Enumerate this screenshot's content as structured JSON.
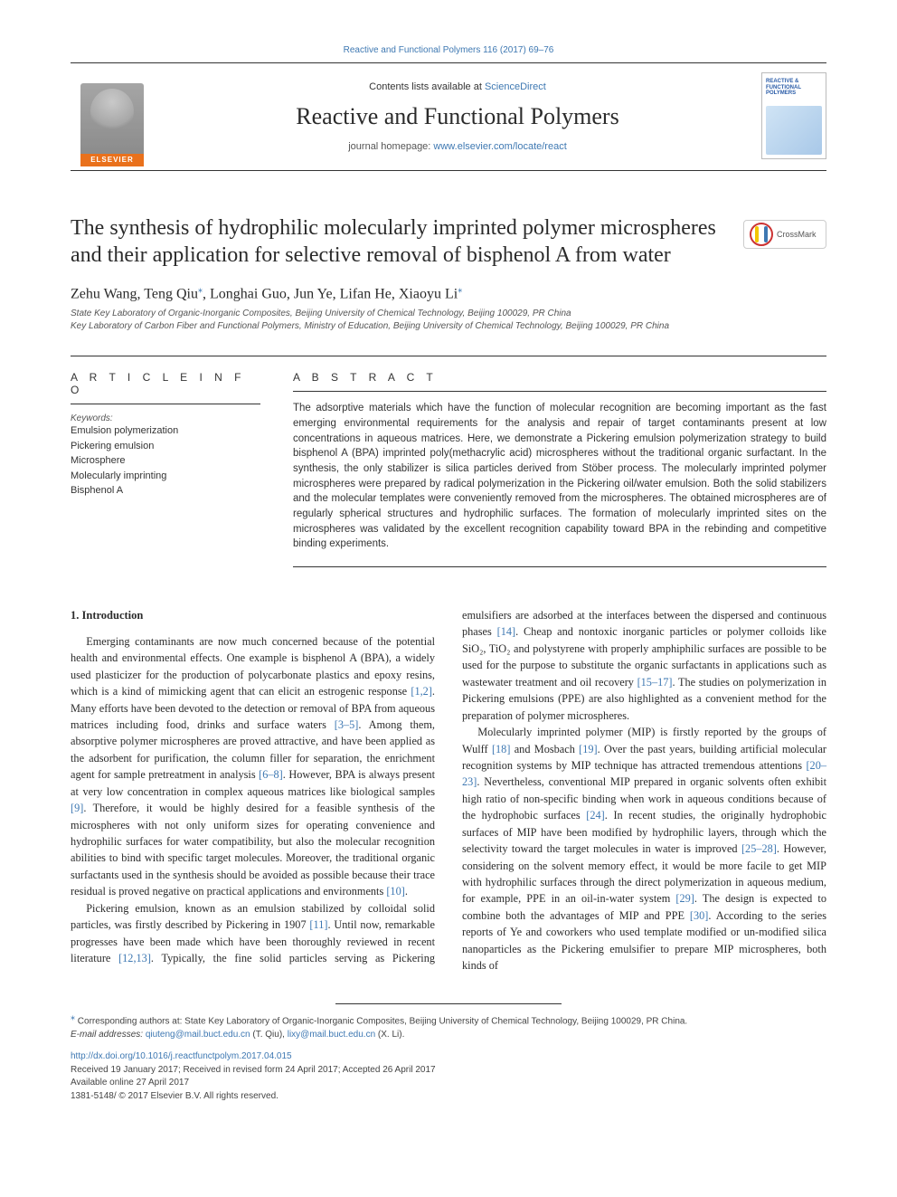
{
  "colors": {
    "link": "#3e78b2",
    "text": "#3a3a3a",
    "heading": "#2b2b2b",
    "elsevier_orange": "#e9711c",
    "border": "#333333"
  },
  "top_link": "Reactive and Functional Polymers 116 (2017) 69–76",
  "masthead": {
    "elsevier_label": "ELSEVIER",
    "contents_prefix": "Contents lists available at ",
    "contents_linktext": "ScienceDirect",
    "journal_name": "Reactive and Functional Polymers",
    "homepage_prefix": "journal homepage: ",
    "homepage_url": "www.elsevier.com/locate/react",
    "cover_title": "REACTIVE & FUNCTIONAL POLYMERS"
  },
  "crossmark_label": "CrossMark",
  "title": "The synthesis of hydrophilic molecularly imprinted polymer microspheres and their application for selective removal of bisphenol A from water",
  "authors_html": "Zehu Wang, Teng Qiu*, Longhai Guo, Jun Ye, Lifan He, Xiaoyu Li*",
  "authors": [
    {
      "name": "Zehu Wang",
      "corresponding": false
    },
    {
      "name": "Teng Qiu",
      "corresponding": true
    },
    {
      "name": "Longhai Guo",
      "corresponding": false
    },
    {
      "name": "Jun Ye",
      "corresponding": false
    },
    {
      "name": "Lifan He",
      "corresponding": false
    },
    {
      "name": "Xiaoyu Li",
      "corresponding": true
    }
  ],
  "affiliations": [
    "State Key Laboratory of Organic-Inorganic Composites, Beijing University of Chemical Technology, Beijing 100029, PR China",
    "Key Laboratory of Carbon Fiber and Functional Polymers, Ministry of Education, Beijing University of Chemical Technology, Beijing 100029, PR China"
  ],
  "article_info": {
    "heading": "A R T I C L E  I N F O",
    "keywords_label": "Keywords:",
    "keywords": [
      "Emulsion polymerization",
      "Pickering emulsion",
      "Microsphere",
      "Molecularly imprinting",
      "Bisphenol A"
    ]
  },
  "abstract": {
    "heading": "A B S T R A C T",
    "text": "The adsorptive materials which have the function of molecular recognition are becoming important as the fast emerging environmental requirements for the analysis and repair of target contaminants present at low concentrations in aqueous matrices. Here, we demonstrate a Pickering emulsion polymerization strategy to build bisphenol A (BPA) imprinted poly(methacrylic acid) microspheres without the traditional organic surfactant. In the synthesis, the only stabilizer is silica particles derived from Stöber process. The molecularly imprinted polymer microspheres were prepared by radical polymerization in the Pickering oil/water emulsion. Both the solid stabilizers and the molecular templates were conveniently removed from the microspheres. The obtained microspheres are of regularly spherical structures and hydrophilic surfaces. The formation of molecularly imprinted sites on the microspheres was validated by the excellent recognition capability toward BPA in the rebinding and competitive binding experiments."
  },
  "body": {
    "heading_1": "1. Introduction",
    "para_1": "Emerging contaminants are now much concerned because of the potential health and environmental effects. One example is bisphenol A (BPA), a widely used plasticizer for the production of polycarbonate plastics and epoxy resins, which is a kind of mimicking agent that can elicit an estrogenic response [1,2]. Many efforts have been devoted to the detection or removal of BPA from aqueous matrices including food, drinks and surface waters [3–5]. Among them, absorptive polymer microspheres are proved attractive, and have been applied as the adsorbent for purification, the column filler for separation, the enrichment agent for sample pretreatment in analysis [6–8]. However, BPA is always present at very low concentration in complex aqueous matrices like biological samples [9]. Therefore, it would be highly desired for a feasible synthesis of the microspheres with not only uniform sizes for operating convenience and hydrophilic surfaces for water compatibility, but also the molecular recognition abilities to bind with specific target molecules. Moreover, the traditional organic surfactants used in the synthesis should be avoided as possible because their trace residual is proved negative on practical applications and environments [10].",
    "para_2": "Pickering emulsion, known as an emulsion stabilized by colloidal solid particles, was firstly described by Pickering in 1907 [11]. Until now, remarkable progresses have been made which have been thoroughly reviewed in recent literature [12,13]. Typically, the fine solid particles serving as Pickering emulsifiers are adsorbed at the interfaces between the dispersed and continuous phases [14]. Cheap and nontoxic inorganic particles or polymer colloids like SiO₂, TiO₂ and polystyrene with properly amphiphilic surfaces are possible to be used for the purpose to substitute the organic surfactants in applications such as wastewater treatment and oil recovery [15–17]. The studies on polymerization in Pickering emulsions (PPE) are also highlighted as a convenient method for the preparation of polymer microspheres.",
    "para_3": "Molecularly imprinted polymer (MIP) is firstly reported by the groups of Wulff [18] and Mosbach [19]. Over the past years, building artificial molecular recognition systems by MIP technique has attracted tremendous attentions [20–23]. Nevertheless, conventional MIP prepared in organic solvents often exhibit high ratio of non-specific binding when work in aqueous conditions because of the hydrophobic surfaces [24]. In recent studies, the originally hydrophobic surfaces of MIP have been modified by hydrophilic layers, through which the selectivity toward the target molecules in water is improved [25–28]. However, considering on the solvent memory effect, it would be more facile to get MIP with hydrophilic surfaces through the direct polymerization in aqueous medium, for example, PPE in an oil-in-water system [29]. The design is expected to combine both the advantages of MIP and PPE [30]. According to the series reports of Ye and coworkers who used template modified or un-modified silica nanoparticles as the Pickering emulsifier to prepare MIP microspheres, both kinds of",
    "refs_inline": [
      "[1,2]",
      "[3–5]",
      "[6–8]",
      "[9]",
      "[10]",
      "[11]",
      "[12,13]",
      "[14]",
      "[15–17]",
      "[18]",
      "[19]",
      "[20–23]",
      "[24]",
      "[25–28]",
      "[29]",
      "[30]"
    ]
  },
  "footer": {
    "corresponding_note": "Corresponding authors at: State Key Laboratory of Organic-Inorganic Composites, Beijing University of Chemical Technology, Beijing 100029, PR China.",
    "email_label": "E-mail addresses:",
    "emails": [
      {
        "addr": "qiuteng@mail.buct.edu.cn",
        "name": "(T. Qiu)"
      },
      {
        "addr": "lixy@mail.buct.edu.cn",
        "name": "(X. Li)"
      }
    ],
    "doi": "http://dx.doi.org/10.1016/j.reactfunctpolym.2017.04.015",
    "received": "Received 19 January 2017; Received in revised form 24 April 2017; Accepted 26 April 2017",
    "available": "Available online 27 April 2017",
    "issn_copyright": "1381-5148/ © 2017 Elsevier B.V. All rights reserved."
  }
}
